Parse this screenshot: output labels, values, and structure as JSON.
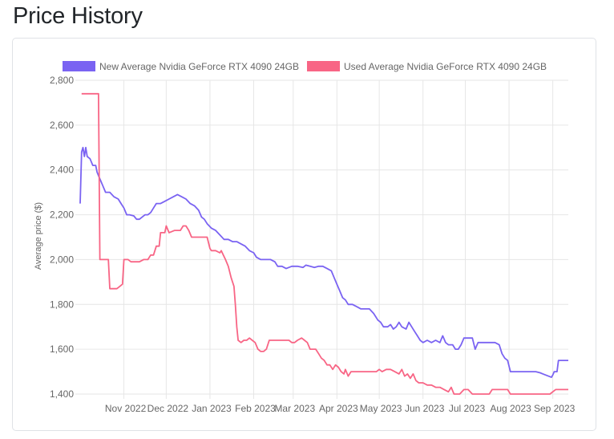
{
  "page": {
    "title": "Price History"
  },
  "chart_data": {
    "type": "line",
    "title": "",
    "xlabel": "",
    "ylabel": "Average price ($)",
    "ylim": [
      1400,
      2800
    ],
    "yticks": [
      1400,
      1600,
      1800,
      2000,
      2200,
      2400,
      2600,
      2800
    ],
    "ytick_labels": [
      "1,400",
      "1,600",
      "1,800",
      "2,000",
      "2,200",
      "2,400",
      "2,600",
      "2,800"
    ],
    "x_unit": "days since 2022-10-01",
    "xlim": [
      0,
      346
    ],
    "xticks": [
      {
        "label": "Nov 2022",
        "x": 31
      },
      {
        "label": "Dec 2022",
        "x": 61
      },
      {
        "label": "Jan 2023",
        "x": 92
      },
      {
        "label": "Feb 2023",
        "x": 123
      },
      {
        "label": "Mar 2023",
        "x": 151
      },
      {
        "label": "Apr 2023",
        "x": 182
      },
      {
        "label": "May 2023",
        "x": 212
      },
      {
        "label": "Jun 2023",
        "x": 243
      },
      {
        "label": "Jul 2023",
        "x": 273
      },
      {
        "label": "Aug 2023",
        "x": 304
      },
      {
        "label": "Sep 2023",
        "x": 335
      }
    ],
    "legend_position": "top",
    "series": [
      {
        "name": "New Average Nvidia GeForce RTX 4090 24GB",
        "color": "#7a63f2",
        "points": [
          [
            0,
            2250
          ],
          [
            1,
            2480
          ],
          [
            2,
            2500
          ],
          [
            3,
            2460
          ],
          [
            4,
            2500
          ],
          [
            5,
            2460
          ],
          [
            7,
            2450
          ],
          [
            9,
            2420
          ],
          [
            11,
            2420
          ],
          [
            12,
            2390
          ],
          [
            14,
            2360
          ],
          [
            16,
            2330
          ],
          [
            18,
            2300
          ],
          [
            21,
            2300
          ],
          [
            24,
            2280
          ],
          [
            27,
            2270
          ],
          [
            29,
            2250
          ],
          [
            31,
            2230
          ],
          [
            33,
            2200
          ],
          [
            35,
            2200
          ],
          [
            38,
            2195
          ],
          [
            40,
            2180
          ],
          [
            42,
            2180
          ],
          [
            44,
            2190
          ],
          [
            46,
            2200
          ],
          [
            48,
            2200
          ],
          [
            50,
            2210
          ],
          [
            52,
            2230
          ],
          [
            54,
            2250
          ],
          [
            57,
            2250
          ],
          [
            60,
            2260
          ],
          [
            63,
            2270
          ],
          [
            66,
            2280
          ],
          [
            69,
            2290
          ],
          [
            72,
            2280
          ],
          [
            75,
            2270
          ],
          [
            78,
            2250
          ],
          [
            81,
            2240
          ],
          [
            84,
            2220
          ],
          [
            86,
            2190
          ],
          [
            88,
            2180
          ],
          [
            90,
            2160
          ],
          [
            93,
            2140
          ],
          [
            96,
            2130
          ],
          [
            99,
            2110
          ],
          [
            102,
            2090
          ],
          [
            105,
            2090
          ],
          [
            108,
            2080
          ],
          [
            111,
            2080
          ],
          [
            114,
            2070
          ],
          [
            117,
            2060
          ],
          [
            120,
            2040
          ],
          [
            123,
            2030
          ],
          [
            125,
            2010
          ],
          [
            128,
            2000
          ],
          [
            131,
            2000
          ],
          [
            135,
            2000
          ],
          [
            138,
            1990
          ],
          [
            140,
            1970
          ],
          [
            143,
            1970
          ],
          [
            146,
            1960
          ],
          [
            150,
            1970
          ],
          [
            154,
            1970
          ],
          [
            158,
            1965
          ],
          [
            160,
            1975
          ],
          [
            163,
            1970
          ],
          [
            166,
            1965
          ],
          [
            169,
            1970
          ],
          [
            172,
            1970
          ],
          [
            175,
            1960
          ],
          [
            178,
            1950
          ],
          [
            180,
            1920
          ],
          [
            182,
            1890
          ],
          [
            184,
            1860
          ],
          [
            186,
            1830
          ],
          [
            188,
            1820
          ],
          [
            190,
            1800
          ],
          [
            193,
            1800
          ],
          [
            196,
            1790
          ],
          [
            199,
            1780
          ],
          [
            202,
            1780
          ],
          [
            205,
            1780
          ],
          [
            208,
            1760
          ],
          [
            211,
            1730
          ],
          [
            213,
            1720
          ],
          [
            215,
            1700
          ],
          [
            218,
            1700
          ],
          [
            220,
            1710
          ],
          [
            222,
            1690
          ],
          [
            224,
            1700
          ],
          [
            226,
            1720
          ],
          [
            228,
            1700
          ],
          [
            231,
            1690
          ],
          [
            233,
            1720
          ],
          [
            235,
            1700
          ],
          [
            237,
            1680
          ],
          [
            239,
            1660
          ],
          [
            241,
            1640
          ],
          [
            243,
            1630
          ],
          [
            246,
            1640
          ],
          [
            249,
            1630
          ],
          [
            252,
            1640
          ],
          [
            255,
            1630
          ],
          [
            257,
            1660
          ],
          [
            259,
            1630
          ],
          [
            261,
            1620
          ],
          [
            264,
            1620
          ],
          [
            266,
            1600
          ],
          [
            268,
            1600
          ],
          [
            270,
            1620
          ],
          [
            272,
            1650
          ],
          [
            275,
            1650
          ],
          [
            278,
            1650
          ],
          [
            280,
            1600
          ],
          [
            282,
            1630
          ],
          [
            286,
            1630
          ],
          [
            290,
            1630
          ],
          [
            294,
            1630
          ],
          [
            297,
            1620
          ],
          [
            299,
            1580
          ],
          [
            301,
            1560
          ],
          [
            303,
            1550
          ],
          [
            305,
            1500
          ],
          [
            309,
            1500
          ],
          [
            314,
            1500
          ],
          [
            319,
            1500
          ],
          [
            323,
            1500
          ],
          [
            326,
            1495
          ],
          [
            328,
            1490
          ],
          [
            330,
            1485
          ],
          [
            332,
            1480
          ],
          [
            334,
            1475
          ],
          [
            335,
            1485
          ],
          [
            336,
            1500
          ],
          [
            338,
            1500
          ],
          [
            339,
            1550
          ],
          [
            342,
            1550
          ],
          [
            346,
            1550
          ]
        ]
      },
      {
        "name": "Used Average Nvidia GeForce RTX 4090 24GB",
        "color": "#f86585",
        "points": [
          [
            1,
            2740
          ],
          [
            11,
            2740
          ],
          [
            13,
            2740
          ],
          [
            14,
            2000
          ],
          [
            20,
            2000
          ],
          [
            21,
            1870
          ],
          [
            26,
            1870
          ],
          [
            28,
            1880
          ],
          [
            30,
            1890
          ],
          [
            31,
            2000
          ],
          [
            34,
            2000
          ],
          [
            36,
            1990
          ],
          [
            42,
            1990
          ],
          [
            45,
            2000
          ],
          [
            48,
            2000
          ],
          [
            50,
            2020
          ],
          [
            52,
            2020
          ],
          [
            54,
            2060
          ],
          [
            56,
            2060
          ],
          [
            57,
            2120
          ],
          [
            60,
            2120
          ],
          [
            61,
            2150
          ],
          [
            63,
            2120
          ],
          [
            67,
            2130
          ],
          [
            71,
            2130
          ],
          [
            73,
            2150
          ],
          [
            75,
            2150
          ],
          [
            77,
            2130
          ],
          [
            79,
            2100
          ],
          [
            85,
            2100
          ],
          [
            88,
            2100
          ],
          [
            90,
            2100
          ],
          [
            92,
            2050
          ],
          [
            93,
            2040
          ],
          [
            96,
            2040
          ],
          [
            99,
            2030
          ],
          [
            100,
            2040
          ],
          [
            103,
            2000
          ],
          [
            105,
            1970
          ],
          [
            107,
            1920
          ],
          [
            109,
            1880
          ],
          [
            110,
            1800
          ],
          [
            111,
            1700
          ],
          [
            112,
            1640
          ],
          [
            114,
            1630
          ],
          [
            116,
            1640
          ],
          [
            118,
            1640
          ],
          [
            120,
            1650
          ],
          [
            122,
            1640
          ],
          [
            124,
            1630
          ],
          [
            126,
            1600
          ],
          [
            128,
            1590
          ],
          [
            130,
            1590
          ],
          [
            132,
            1600
          ],
          [
            134,
            1640
          ],
          [
            137,
            1640
          ],
          [
            140,
            1640
          ],
          [
            144,
            1640
          ],
          [
            148,
            1640
          ],
          [
            150,
            1630
          ],
          [
            152,
            1630
          ],
          [
            154,
            1640
          ],
          [
            157,
            1650
          ],
          [
            159,
            1640
          ],
          [
            161,
            1630
          ],
          [
            163,
            1600
          ],
          [
            165,
            1600
          ],
          [
            167,
            1600
          ],
          [
            169,
            1580
          ],
          [
            171,
            1560
          ],
          [
            173,
            1550
          ],
          [
            175,
            1530
          ],
          [
            177,
            1530
          ],
          [
            179,
            1510
          ],
          [
            181,
            1530
          ],
          [
            183,
            1520
          ],
          [
            185,
            1500
          ],
          [
            187,
            1490
          ],
          [
            188,
            1510
          ],
          [
            190,
            1480
          ],
          [
            192,
            1500
          ],
          [
            196,
            1500
          ],
          [
            201,
            1500
          ],
          [
            206,
            1500
          ],
          [
            210,
            1500
          ],
          [
            212,
            1510
          ],
          [
            214,
            1500
          ],
          [
            217,
            1510
          ],
          [
            220,
            1510
          ],
          [
            223,
            1500
          ],
          [
            226,
            1490
          ],
          [
            228,
            1510
          ],
          [
            230,
            1480
          ],
          [
            232,
            1490
          ],
          [
            234,
            1470
          ],
          [
            236,
            1490
          ],
          [
            238,
            1460
          ],
          [
            240,
            1450
          ],
          [
            243,
            1450
          ],
          [
            246,
            1440
          ],
          [
            249,
            1440
          ],
          [
            252,
            1430
          ],
          [
            255,
            1430
          ],
          [
            258,
            1420
          ],
          [
            261,
            1410
          ],
          [
            263,
            1430
          ],
          [
            265,
            1400
          ],
          [
            269,
            1400
          ],
          [
            272,
            1420
          ],
          [
            275,
            1420
          ],
          [
            278,
            1400
          ],
          [
            290,
            1400
          ],
          [
            292,
            1420
          ],
          [
            303,
            1420
          ],
          [
            305,
            1400
          ],
          [
            318,
            1400
          ],
          [
            330,
            1400
          ],
          [
            333,
            1400
          ],
          [
            335,
            1410
          ],
          [
            337,
            1420
          ],
          [
            346,
            1420
          ]
        ]
      }
    ]
  }
}
